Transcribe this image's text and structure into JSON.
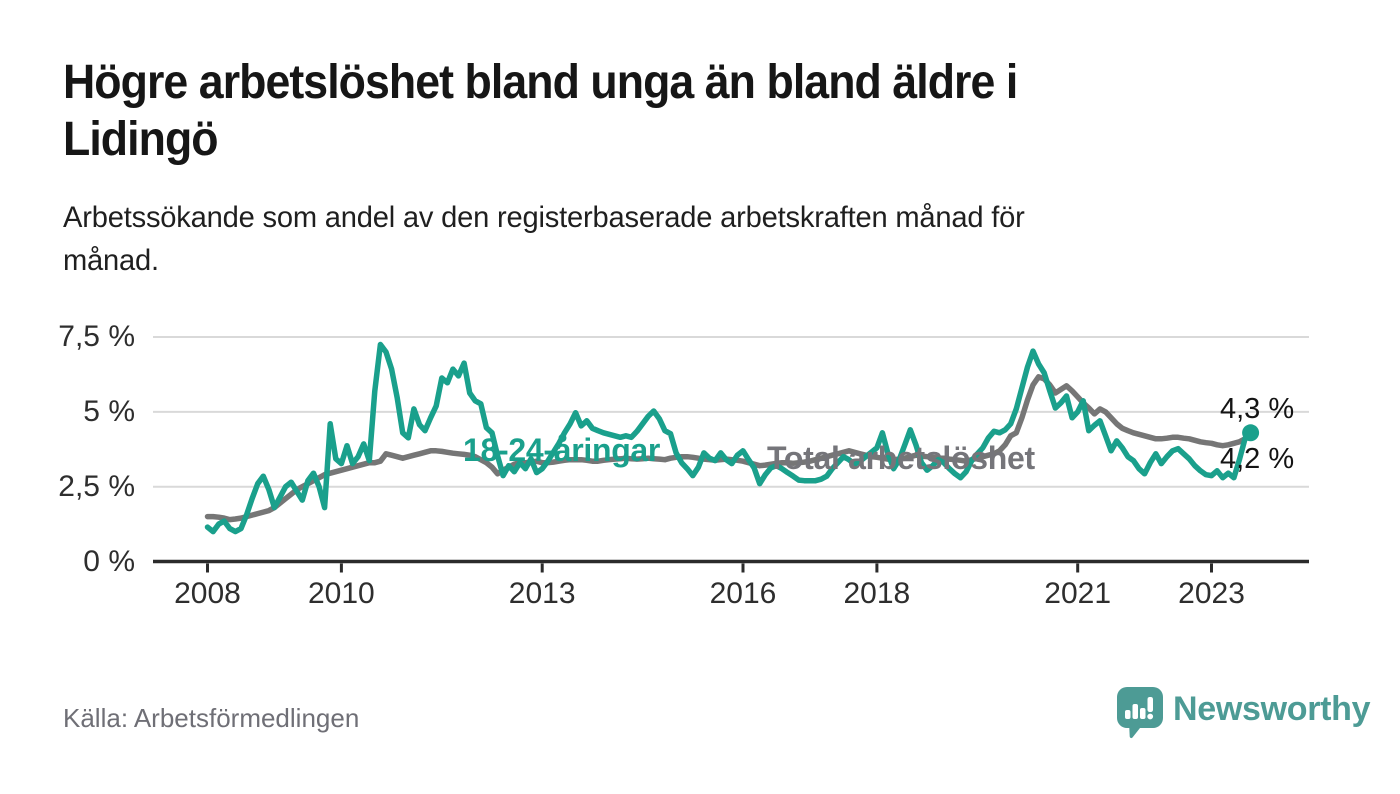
{
  "header": {
    "title": "Högre arbetslöshet bland unga än bland äldre i Lidingö",
    "title_lines": [
      "Högre arbetslöshet bland unga än bland äldre i",
      "Lidingö"
    ],
    "subtitle": "Arbetssökande som andel av den registerbaserade arbetskraften månad för månad.",
    "subtitle_lines": [
      "Arbetssökande som andel av den registerbaserade arbetskraften månad för",
      "månad."
    ]
  },
  "footer": {
    "source": "Källa: Arbetsförmedlingen",
    "brand_name": "Newsworthy",
    "brand_icon": "bar-chart-speech-bubble-icon"
  },
  "colors": {
    "young_line": "#1aa08c",
    "total_line": "#767676",
    "total_label": "#75757a",
    "grid": "#d9d9d9",
    "axis": "#2b2b2b",
    "text": "#2e2e2e",
    "brand_teal": "#4d9b95"
  },
  "chart_data": {
    "type": "line",
    "title": "Högre arbetslöshet bland unga än bland äldre i Lidingö",
    "subtitle": "Arbetssökande som andel av den registerbaserade arbetskraften månad för månad.",
    "x_interval": "monthly",
    "x_start": "2008-01",
    "x_end": "2023-08",
    "ylim": [
      0,
      8
    ],
    "grid": "horizontal",
    "legend": "inline-labels",
    "y_ticks": [
      {
        "value": 0,
        "label": "0 %"
      },
      {
        "value": 2.5,
        "label": "2,5 %"
      },
      {
        "value": 5,
        "label": "5 %"
      },
      {
        "value": 7.5,
        "label": "7,5 %"
      }
    ],
    "y_grid_values": [
      2.5,
      5,
      7.5
    ],
    "x_ticks": [
      {
        "year": 2008,
        "label": "2008"
      },
      {
        "year": 2010,
        "label": "2010"
      },
      {
        "year": 2013,
        "label": "2013"
      },
      {
        "year": 2016,
        "label": "2016"
      },
      {
        "year": 2018,
        "label": "2018"
      },
      {
        "year": 2021,
        "label": "2021"
      },
      {
        "year": 2023,
        "label": "2023"
      }
    ],
    "series": [
      {
        "name": "18-24-åringar",
        "color": "#1aa08c",
        "end_label": "4,3 %",
        "end_value": 4.3,
        "end_marker": true,
        "z": 2,
        "values": [
          1.15,
          1.0,
          1.25,
          1.35,
          1.1,
          1.0,
          1.1,
          1.55,
          2.1,
          2.6,
          2.85,
          2.4,
          1.8,
          2.15,
          2.5,
          2.65,
          2.35,
          2.05,
          2.7,
          2.95,
          2.5,
          1.8,
          4.6,
          3.43,
          3.27,
          3.87,
          3.27,
          3.5,
          3.93,
          3.37,
          5.7,
          7.25,
          7.0,
          6.43,
          5.47,
          4.3,
          4.13,
          5.1,
          4.57,
          4.37,
          4.8,
          5.2,
          6.13,
          5.97,
          6.43,
          6.2,
          6.63,
          5.63,
          5.37,
          5.27,
          4.47,
          4.3,
          3.53,
          2.87,
          3.2,
          3.0,
          3.3,
          3.1,
          3.43,
          2.97,
          3.1,
          3.35,
          3.65,
          3.95,
          4.3,
          4.6,
          4.97,
          4.53,
          4.7,
          4.45,
          4.37,
          4.3,
          4.25,
          4.2,
          4.15,
          4.2,
          4.15,
          4.35,
          4.6,
          4.85,
          5.03,
          4.77,
          4.37,
          4.27,
          3.63,
          3.3,
          3.1,
          2.87,
          3.15,
          3.63,
          3.45,
          3.37,
          3.63,
          3.4,
          3.27,
          3.55,
          3.7,
          3.4,
          3.13,
          2.6,
          2.9,
          3.13,
          3.2,
          3.1,
          2.97,
          2.85,
          2.72,
          2.7,
          2.7,
          2.7,
          2.75,
          2.85,
          3.1,
          3.3,
          3.5,
          3.4,
          3.25,
          3.35,
          3.5,
          3.65,
          3.8,
          4.3,
          3.6,
          3.1,
          3.4,
          3.9,
          4.4,
          3.9,
          3.3,
          3.05,
          3.2,
          3.4,
          3.3,
          3.1,
          2.93,
          2.8,
          3.0,
          3.37,
          3.6,
          3.8,
          4.13,
          4.35,
          4.3,
          4.4,
          4.6,
          5.1,
          5.8,
          6.5,
          7.03,
          6.6,
          6.3,
          5.7,
          5.13,
          5.3,
          5.53,
          4.8,
          5.0,
          5.37,
          4.37,
          4.55,
          4.7,
          4.2,
          3.7,
          4.03,
          3.8,
          3.5,
          3.37,
          3.1,
          2.93,
          3.3,
          3.6,
          3.27,
          3.5,
          3.7,
          3.77,
          3.6,
          3.43,
          3.2,
          3.03,
          2.9,
          2.87,
          3.03,
          2.8,
          2.95,
          2.8,
          3.4,
          4.1,
          4.3
        ]
      },
      {
        "name": "Total arbetslöshet",
        "color": "#767676",
        "end_label": "4,2 %",
        "end_value": 4.2,
        "end_marker": false,
        "z": 1,
        "values": [
          1.5,
          1.5,
          1.48,
          1.45,
          1.4,
          1.42,
          1.45,
          1.5,
          1.55,
          1.6,
          1.65,
          1.7,
          1.8,
          1.95,
          2.1,
          2.25,
          2.4,
          2.5,
          2.6,
          2.7,
          2.8,
          2.9,
          2.95,
          3.0,
          3.05,
          3.1,
          3.15,
          3.2,
          3.25,
          3.3,
          3.3,
          3.35,
          3.6,
          3.55,
          3.5,
          3.45,
          3.5,
          3.55,
          3.6,
          3.65,
          3.7,
          3.7,
          3.68,
          3.65,
          3.62,
          3.6,
          3.58,
          3.55,
          3.5,
          3.4,
          3.3,
          3.15,
          2.93,
          3.05,
          3.15,
          3.25,
          3.3,
          3.3,
          3.32,
          3.35,
          3.3,
          3.3,
          3.32,
          3.35,
          3.38,
          3.4,
          3.4,
          3.4,
          3.38,
          3.35,
          3.35,
          3.38,
          3.4,
          3.42,
          3.43,
          3.45,
          3.43,
          3.42,
          3.43,
          3.45,
          3.43,
          3.42,
          3.4,
          3.45,
          3.48,
          3.5,
          3.5,
          3.48,
          3.45,
          3.42,
          3.4,
          3.38,
          3.4,
          3.42,
          3.4,
          3.38,
          3.35,
          3.3,
          3.25,
          3.2,
          3.22,
          3.25,
          3.28,
          3.3,
          3.3,
          3.28,
          3.3,
          3.32,
          3.35,
          3.4,
          3.45,
          3.5,
          3.55,
          3.6,
          3.65,
          3.7,
          3.65,
          3.6,
          3.55,
          3.5,
          3.48,
          3.45,
          3.42,
          3.4,
          3.42,
          3.45,
          3.5,
          3.55,
          3.52,
          3.5,
          3.48,
          3.45,
          3.45,
          3.42,
          3.4,
          3.38,
          3.35,
          3.4,
          3.45,
          3.5,
          3.55,
          3.6,
          3.7,
          3.9,
          4.2,
          4.3,
          4.8,
          5.4,
          5.9,
          6.17,
          6.1,
          5.9,
          5.63,
          5.75,
          5.87,
          5.7,
          5.5,
          5.3,
          5.13,
          4.93,
          5.1,
          5.0,
          4.8,
          4.6,
          4.45,
          4.37,
          4.3,
          4.25,
          4.2,
          4.15,
          4.1,
          4.1,
          4.12,
          4.15,
          4.15,
          4.12,
          4.1,
          4.05,
          4.0,
          3.97,
          3.95,
          3.9,
          3.87,
          3.9,
          3.95,
          4.0,
          4.1,
          4.2
        ]
      }
    ]
  }
}
